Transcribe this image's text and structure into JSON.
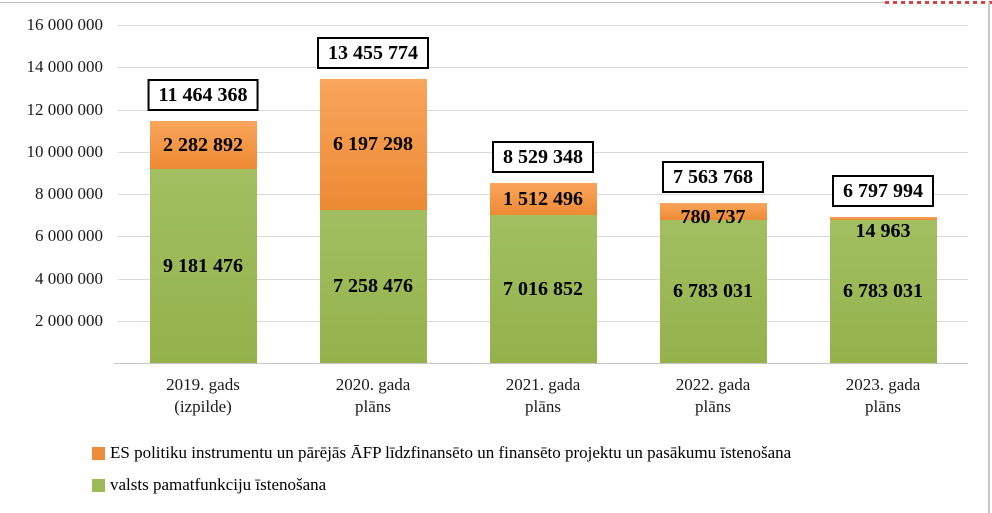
{
  "chart_data": {
    "type": "bar",
    "stacked": true,
    "title": "",
    "xlabel": "",
    "ylabel": "",
    "ylim": [
      0,
      16000000
    ],
    "grid": true,
    "legend_position": "bottom",
    "categories": [
      "2019. gads\n(izpilde)",
      "2020. gada\nplāns",
      "2021. gada\nplāns",
      "2022. gada\nplāns",
      "2023. gada\nplāns"
    ],
    "y_ticks": [
      {
        "value": 2000000,
        "label": "2 000 000"
      },
      {
        "value": 4000000,
        "label": "4 000 000"
      },
      {
        "value": 6000000,
        "label": "6 000 000"
      },
      {
        "value": 8000000,
        "label": "8 000 000"
      },
      {
        "value": 10000000,
        "label": "10 000 000"
      },
      {
        "value": 12000000,
        "label": "12 000 000"
      },
      {
        "value": 14000000,
        "label": "14 000 000"
      },
      {
        "value": 16000000,
        "label": "16 000 000"
      }
    ],
    "series": [
      {
        "name": "ES politiku instrumentu un pārējās ĀFP līdzfinansēto un finansēto projektu un pasākumu īstenošana",
        "color": "#ED8C3B",
        "values": [
          2282892,
          6197298,
          1512496,
          780737,
          14963
        ],
        "labels": [
          "2 282 892",
          "6 197 298",
          "1 512 496",
          "780 737",
          "14 963"
        ]
      },
      {
        "name": "valsts pamatfunkciju īstenošana",
        "color": "#9BBB59",
        "values": [
          9181476,
          7258476,
          7016852,
          6783031,
          6783031
        ],
        "labels": [
          "9 181 476",
          "7 258 476",
          "7 016 852",
          "6 783 031",
          "6 783 031"
        ]
      }
    ],
    "totals": {
      "values": [
        11464368,
        13455774,
        8529348,
        7563768,
        6797994
      ],
      "labels": [
        "11 464 368",
        "13 455 774",
        "8 529 348",
        "7 563 768",
        "6 797 994"
      ]
    }
  }
}
